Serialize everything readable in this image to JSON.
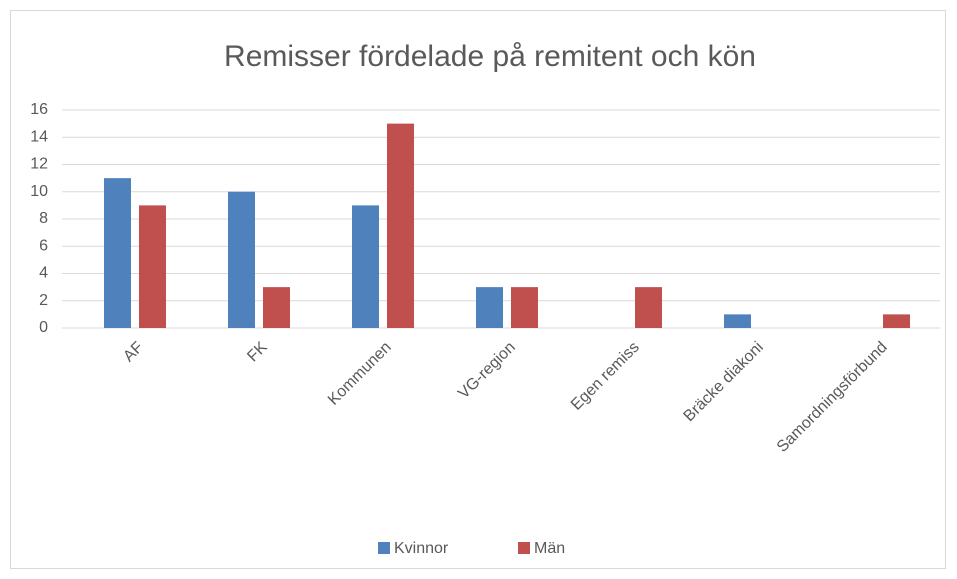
{
  "chart_data": {
    "type": "bar",
    "title": "Remisser fördelade på remitent och kön",
    "categories": [
      "AF",
      "FK",
      "Kommunen",
      "VG-region",
      "Egen remiss",
      "Bräcke diakoni",
      "Samordningsförbund"
    ],
    "series": [
      {
        "name": "Kvinnor",
        "color": "#4f81bd",
        "values": [
          11,
          10,
          9,
          3,
          0,
          1,
          0
        ]
      },
      {
        "name": "Män",
        "color": "#c0504d",
        "values": [
          9,
          3,
          15,
          3,
          3,
          0,
          1
        ]
      }
    ],
    "ylim": [
      0,
      16
    ],
    "yticks": [
      0,
      2,
      4,
      6,
      8,
      10,
      12,
      14,
      16
    ],
    "grid": true,
    "legend": "bottom"
  }
}
